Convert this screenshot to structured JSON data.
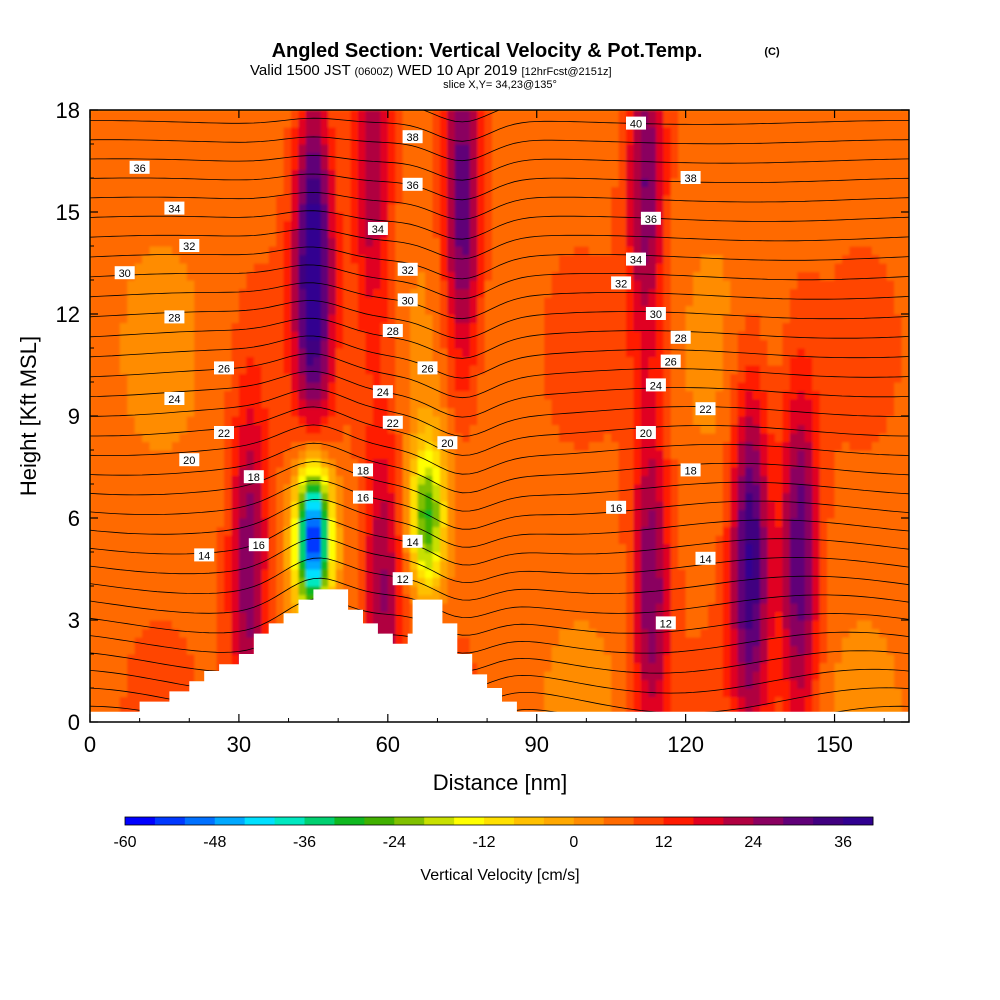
{
  "title": {
    "main": "Angled Section: Vertical Velocity & Pot.Temp.",
    "main_suffix": "(C)",
    "valid_prefix": "Valid 1500 JST",
    "valid_z": "(0600Z)",
    "valid_date": "WED 10 Apr 2019",
    "valid_fcst": "[12hrFcst@2151z]",
    "slice": "slice X,Y= 34,23@135°"
  },
  "chart_data": {
    "type": "heatmap",
    "xlabel": "Distance [nm]",
    "ylabel": "Height [Kft MSL]",
    "xlim": [
      0,
      165
    ],
    "ylim": [
      0,
      18
    ],
    "x_ticks": [
      0,
      30,
      60,
      90,
      120,
      150
    ],
    "y_ticks": [
      0,
      3,
      6,
      9,
      12,
      15,
      18
    ],
    "fill_variable": "Vertical Velocity [cm/s]",
    "colorbar": {
      "label": "Vertical Velocity [cm/s]",
      "min": -60,
      "max": 40,
      "step": 4,
      "tick_labels": [
        -60,
        -48,
        -36,
        -24,
        -12,
        0,
        12,
        24,
        36
      ],
      "colors": [
        "#0000ff",
        "#0038ff",
        "#0070ff",
        "#00a8ff",
        "#00e0ff",
        "#00e8c0",
        "#00d070",
        "#10b820",
        "#40b000",
        "#80c000",
        "#c8e000",
        "#ffff00",
        "#ffe000",
        "#ffc000",
        "#ffa800",
        "#ff8c00",
        "#ff6a00",
        "#ff4400",
        "#ff1a00",
        "#e00020",
        "#b00040",
        "#8a0060",
        "#600078",
        "#400080",
        "#300090"
      ]
    },
    "contour_variable": "Potential Temperature (C)",
    "contour_labels": [
      {
        "v": 12,
        "x": 116,
        "y": 2.9
      },
      {
        "v": 12,
        "x": 63,
        "y": 4.2
      },
      {
        "v": 14,
        "x": 23,
        "y": 4.9
      },
      {
        "v": 14,
        "x": 65,
        "y": 5.3
      },
      {
        "v": 14,
        "x": 124,
        "y": 4.8
      },
      {
        "v": 16,
        "x": 34,
        "y": 5.2
      },
      {
        "v": 16,
        "x": 55,
        "y": 6.6
      },
      {
        "v": 16,
        "x": 106,
        "y": 6.3
      },
      {
        "v": 18,
        "x": 33,
        "y": 7.2
      },
      {
        "v": 18,
        "x": 55,
        "y": 7.4
      },
      {
        "v": 18,
        "x": 121,
        "y": 7.4
      },
      {
        "v": 20,
        "x": 20,
        "y": 7.7
      },
      {
        "v": 20,
        "x": 72,
        "y": 8.2
      },
      {
        "v": 20,
        "x": 112,
        "y": 8.5
      },
      {
        "v": 22,
        "x": 27,
        "y": 8.5
      },
      {
        "v": 22,
        "x": 61,
        "y": 8.8
      },
      {
        "v": 22,
        "x": 124,
        "y": 9.2
      },
      {
        "v": 24,
        "x": 17,
        "y": 9.5
      },
      {
        "v": 24,
        "x": 59,
        "y": 9.7
      },
      {
        "v": 24,
        "x": 114,
        "y": 9.9
      },
      {
        "v": 26,
        "x": 27,
        "y": 10.4
      },
      {
        "v": 26,
        "x": 68,
        "y": 10.4
      },
      {
        "v": 26,
        "x": 117,
        "y": 10.6
      },
      {
        "v": 28,
        "x": 17,
        "y": 11.9
      },
      {
        "v": 28,
        "x": 61,
        "y": 11.5
      },
      {
        "v": 28,
        "x": 119,
        "y": 11.3
      },
      {
        "v": 30,
        "x": 7,
        "y": 13.2
      },
      {
        "v": 30,
        "x": 64,
        "y": 12.4
      },
      {
        "v": 30,
        "x": 114,
        "y": 12.0
      },
      {
        "v": 32,
        "x": 20,
        "y": 14.0
      },
      {
        "v": 32,
        "x": 64,
        "y": 13.3
      },
      {
        "v": 32,
        "x": 107,
        "y": 12.9
      },
      {
        "v": 34,
        "x": 17,
        "y": 15.1
      },
      {
        "v": 34,
        "x": 58,
        "y": 14.5
      },
      {
        "v": 34,
        "x": 110,
        "y": 13.6
      },
      {
        "v": 36,
        "x": 10,
        "y": 16.3
      },
      {
        "v": 36,
        "x": 65,
        "y": 15.8
      },
      {
        "v": 36,
        "x": 113,
        "y": 14.8
      },
      {
        "v": 38,
        "x": 65,
        "y": 17.2
      },
      {
        "v": 38,
        "x": 121,
        "y": 16.0
      },
      {
        "v": 40,
        "x": 110,
        "y": 17.6
      }
    ],
    "velocity_features": [
      {
        "kind": "updraft",
        "x": 32,
        "y": 4.5,
        "peak": 28
      },
      {
        "kind": "updraft",
        "x": 45,
        "y": 13.5,
        "peak": 40
      },
      {
        "kind": "updraft",
        "x": 57,
        "y": 16.5,
        "peak": 24
      },
      {
        "kind": "updraft",
        "x": 75,
        "y": 15.0,
        "peak": 32
      },
      {
        "kind": "updraft",
        "x": 112,
        "y": 16.0,
        "peak": 28
      },
      {
        "kind": "updraft",
        "x": 113,
        "y": 4.0,
        "peak": 28
      },
      {
        "kind": "updraft",
        "x": 133,
        "y": 5.0,
        "peak": 36
      },
      {
        "kind": "updraft",
        "x": 143,
        "y": 4.8,
        "peak": 32
      },
      {
        "kind": "updraft",
        "x": 59,
        "y": 4.0,
        "peak": 24
      },
      {
        "kind": "downdraft",
        "x": 45,
        "y": 5.5,
        "peak": -60
      },
      {
        "kind": "downdraft",
        "x": 68,
        "y": 6.0,
        "peak": -28
      }
    ],
    "terrain": [
      [
        0,
        0.3
      ],
      [
        10,
        0.3
      ],
      [
        10,
        0.6
      ],
      [
        16,
        0.6
      ],
      [
        16,
        0.9
      ],
      [
        20,
        0.9
      ],
      [
        20,
        1.2
      ],
      [
        23,
        1.2
      ],
      [
        23,
        1.5
      ],
      [
        26,
        1.5
      ],
      [
        26,
        1.7
      ],
      [
        30,
        1.7
      ],
      [
        30,
        2.0
      ],
      [
        33,
        2.0
      ],
      [
        33,
        2.6
      ],
      [
        36,
        2.6
      ],
      [
        36,
        2.9
      ],
      [
        39,
        2.9
      ],
      [
        39,
        3.2
      ],
      [
        42,
        3.2
      ],
      [
        42,
        3.6
      ],
      [
        45,
        3.6
      ],
      [
        45,
        3.9
      ],
      [
        52,
        3.9
      ],
      [
        52,
        3.3
      ],
      [
        55,
        3.3
      ],
      [
        55,
        2.9
      ],
      [
        58,
        2.9
      ],
      [
        58,
        2.6
      ],
      [
        61,
        2.6
      ],
      [
        61,
        2.3
      ],
      [
        64,
        2.3
      ],
      [
        64,
        2.6
      ],
      [
        65,
        2.6
      ],
      [
        65,
        3.6
      ],
      [
        71,
        3.6
      ],
      [
        71,
        2.9
      ],
      [
        74,
        2.9
      ],
      [
        74,
        2.0
      ],
      [
        77,
        2.0
      ],
      [
        77,
        1.4
      ],
      [
        80,
        1.4
      ],
      [
        80,
        1.0
      ],
      [
        83,
        1.0
      ],
      [
        83,
        0.6
      ],
      [
        86,
        0.6
      ],
      [
        86,
        0.3
      ],
      [
        165,
        0.3
      ]
    ]
  }
}
